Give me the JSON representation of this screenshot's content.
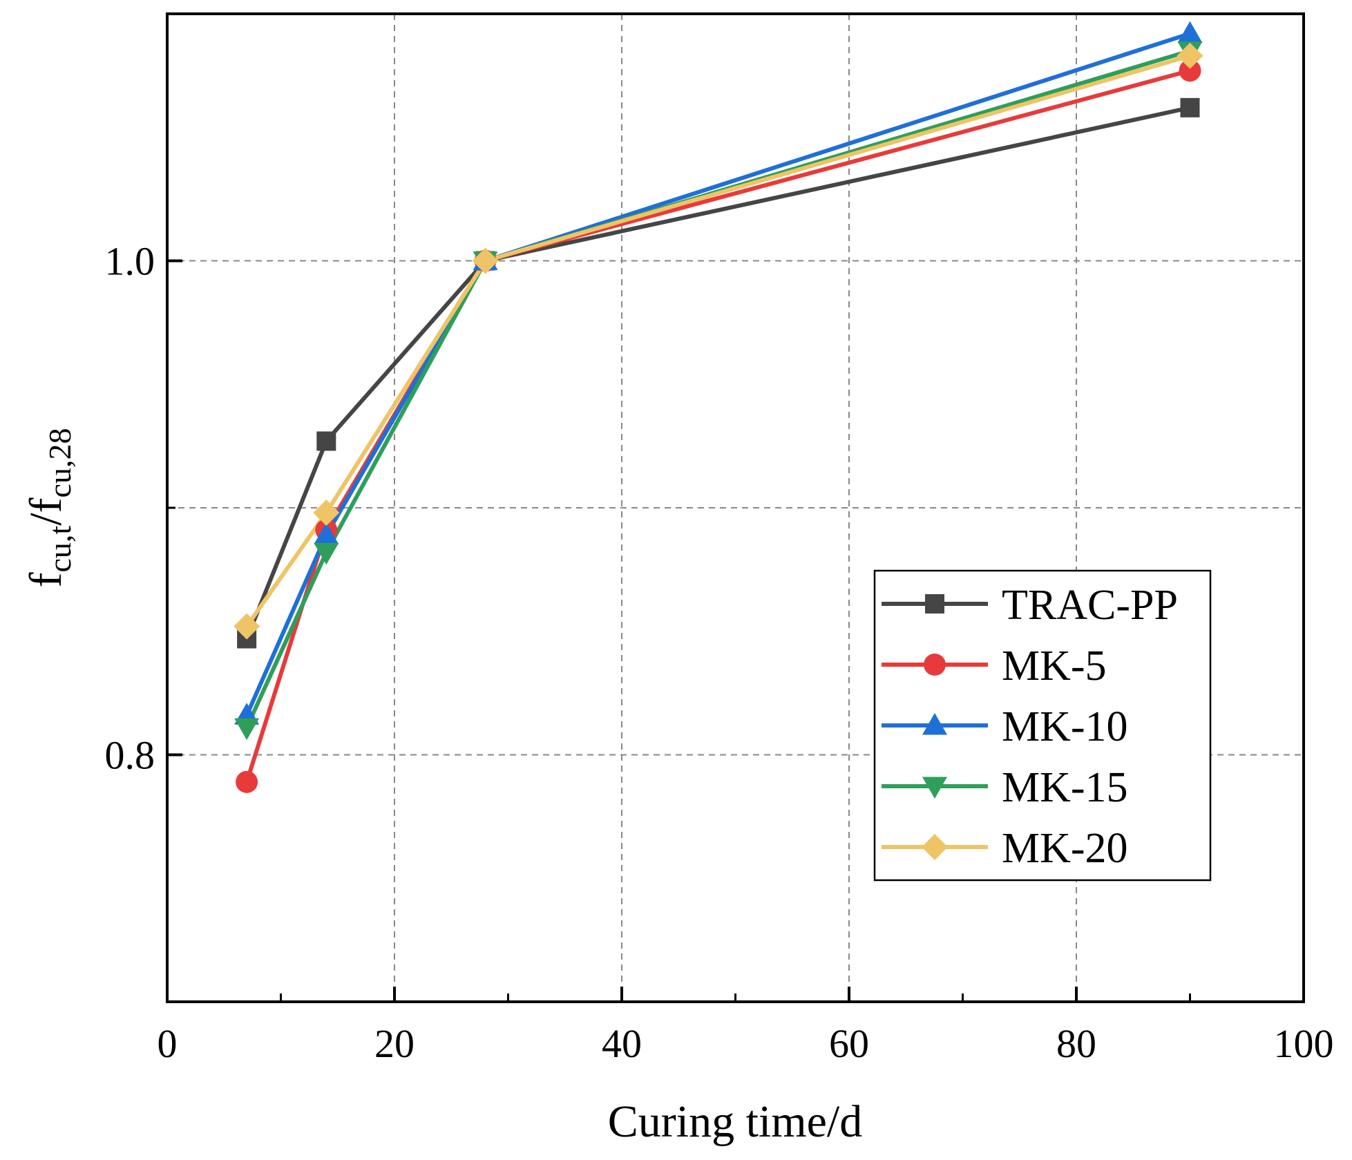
{
  "chart_data": {
    "type": "line",
    "title": "",
    "xlabel": "Curing time/d",
    "ylabel": {
      "base1": "f",
      "sub1": "cu,t",
      "slash": "/",
      "base2": "f",
      "sub2": "cu,28"
    },
    "xlim": [
      0,
      100
    ],
    "ylim": [
      0.7,
      1.1
    ],
    "xticks": [
      0,
      20,
      40,
      60,
      80,
      100
    ],
    "xtick_labels": [
      "0",
      "20",
      "40",
      "60",
      "80",
      "100"
    ],
    "yticks_labeled": [
      0.8,
      1.0
    ],
    "ytick_labels": [
      "0.8",
      "1.0"
    ],
    "grid": true,
    "legend_position": "center-right",
    "x": [
      7,
      14,
      28,
      90
    ],
    "series": [
      {
        "name": "TRAC-PP",
        "color": "#454545",
        "marker": "square",
        "values": [
          0.847,
          0.927,
          1.0,
          1.062
        ]
      },
      {
        "name": "MK-5",
        "color": "#e83a3a",
        "marker": "circle",
        "values": [
          0.789,
          0.891,
          1.0,
          1.077
        ]
      },
      {
        "name": "MK-10",
        "color": "#1f6fd8",
        "marker": "triangle",
        "values": [
          0.816,
          0.889,
          1.0,
          1.092
        ]
      },
      {
        "name": "MK-15",
        "color": "#2f9e5a",
        "marker": "triangle-down",
        "values": [
          0.811,
          0.882,
          1.0,
          1.085
        ]
      },
      {
        "name": "MK-20",
        "color": "#eec466",
        "marker": "diamond",
        "values": [
          0.852,
          0.898,
          1.0,
          1.083
        ]
      }
    ]
  }
}
